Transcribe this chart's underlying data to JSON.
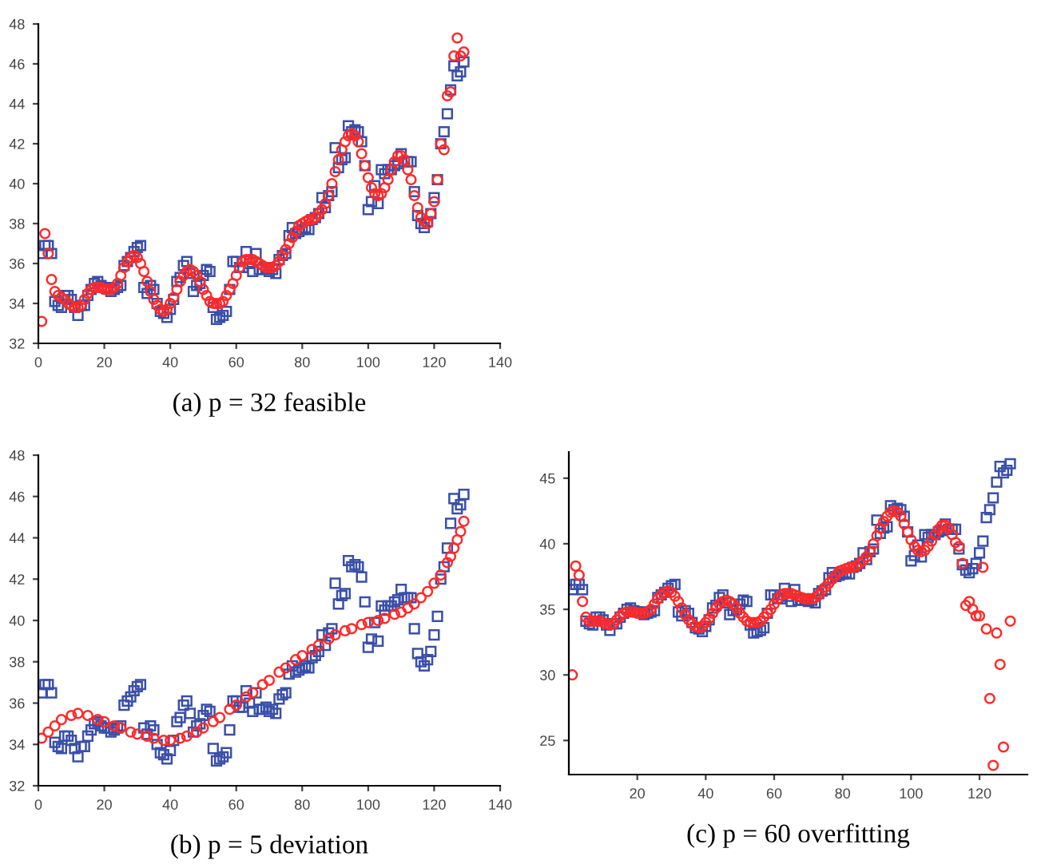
{
  "chart_data": [
    {
      "type": "scatter",
      "xlabel": "(a) p = 32 feasible",
      "xlim": [
        0,
        140
      ],
      "ylim": [
        32,
        48
      ],
      "xticks": [
        0,
        20,
        40,
        60,
        80,
        100,
        120,
        140
      ],
      "yticks": [
        32,
        34,
        36,
        38,
        40,
        42,
        44,
        46,
        48
      ],
      "x": [
        1,
        2,
        3,
        4,
        5,
        6,
        7,
        8,
        9,
        10,
        11,
        12,
        13,
        14,
        15,
        16,
        17,
        18,
        19,
        20,
        21,
        22,
        23,
        24,
        25,
        26,
        27,
        28,
        29,
        30,
        31,
        32,
        33,
        34,
        35,
        36,
        37,
        38,
        39,
        40,
        41,
        42,
        43,
        44,
        45,
        46,
        47,
        48,
        49,
        50,
        51,
        52,
        53,
        54,
        55,
        56,
        57,
        58,
        59,
        60,
        61,
        62,
        63,
        64,
        65,
        66,
        67,
        68,
        69,
        70,
        71,
        72,
        73,
        74,
        75,
        76,
        77,
        78,
        79,
        80,
        81,
        82,
        83,
        84,
        85,
        86,
        87,
        88,
        89,
        90,
        91,
        92,
        93,
        94,
        95,
        96,
        97,
        98,
        99,
        100,
        101,
        102,
        103,
        104,
        105,
        106,
        107,
        108,
        109,
        110,
        111,
        112,
        113,
        114,
        115,
        116,
        117,
        118,
        119,
        120,
        121,
        122,
        123,
        124,
        125,
        126,
        127,
        128,
        129
      ],
      "series": [
        {
          "color": "#3a4fa8",
          "marker": "square",
          "values": [
            36.5,
            36.9,
            36.9,
            36.5,
            34.1,
            33.9,
            33.8,
            34.4,
            34.4,
            34.2,
            33.8,
            33.4,
            33.9,
            33.9,
            34.4,
            34.7,
            35.0,
            35.1,
            34.9,
            34.8,
            34.8,
            34.6,
            34.7,
            34.8,
            34.9,
            35.9,
            36.1,
            36.3,
            36.6,
            36.8,
            36.9,
            34.8,
            34.5,
            34.9,
            34.7,
            34.0,
            33.6,
            33.5,
            33.3,
            33.7,
            34.2,
            35.1,
            35.3,
            35.9,
            36.1,
            35.5,
            34.6,
            34.9,
            35.0,
            35.4,
            35.7,
            35.6,
            33.8,
            33.2,
            33.3,
            33.4,
            33.6,
            34.7,
            36.1,
            36.1,
            35.8,
            35.8,
            36.6,
            36.0,
            35.6,
            36.5,
            35.7,
            35.7,
            35.8,
            35.6,
            35.7,
            35.5,
            36.2,
            36.4,
            36.5,
            37.4,
            37.8,
            37.5,
            37.6,
            37.7,
            37.8,
            37.7,
            38.2,
            38.3,
            38.5,
            39.3,
            38.8,
            39.4,
            39.6,
            41.8,
            40.8,
            41.2,
            41.3,
            42.9,
            42.6,
            42.7,
            42.6,
            42.1,
            40.9,
            38.7,
            39.1,
            39.9,
            39.0,
            40.7,
            40.5,
            40.7,
            40.7,
            40.9,
            41.0,
            41.5,
            41.1,
            41.1,
            41.1,
            39.6,
            38.4,
            38.0,
            37.8,
            38.1,
            38.5,
            39.3,
            40.2,
            42.0,
            42.6,
            43.5,
            44.7,
            45.9,
            45.4,
            45.6,
            46.1
          ]
        },
        {
          "color": "#ff2a2a",
          "marker": "circle",
          "values": [
            33.1,
            37.5,
            36.5,
            35.2,
            34.6,
            34.4,
            34.3,
            34.2,
            34.0,
            33.9,
            33.8,
            33.8,
            33.9,
            34.2,
            34.5,
            34.7,
            34.8,
            34.8,
            34.8,
            34.7,
            34.7,
            34.7,
            34.8,
            35.0,
            35.4,
            35.8,
            36.1,
            36.3,
            36.4,
            36.3,
            36.0,
            35.6,
            35.1,
            34.6,
            34.2,
            33.9,
            33.7,
            33.6,
            33.7,
            34.0,
            34.3,
            34.7,
            35.1,
            35.4,
            35.6,
            35.7,
            35.6,
            35.4,
            35.1,
            34.7,
            34.4,
            34.1,
            34.0,
            34.0,
            34.0,
            34.1,
            34.4,
            34.7,
            35.0,
            35.4,
            35.8,
            36.1,
            36.2,
            36.2,
            36.2,
            36.1,
            36.0,
            35.9,
            35.8,
            35.8,
            35.8,
            35.9,
            36.1,
            36.4,
            36.7,
            37.0,
            37.3,
            37.6,
            37.9,
            38.0,
            38.1,
            38.2,
            38.2,
            38.3,
            38.5,
            38.7,
            39.0,
            39.4,
            40.0,
            40.6,
            41.2,
            41.7,
            42.1,
            42.4,
            42.5,
            42.4,
            42.1,
            41.5,
            40.9,
            40.3,
            39.8,
            39.5,
            39.4,
            39.5,
            39.8,
            40.2,
            40.7,
            41.1,
            41.4,
            41.4,
            41.2,
            40.7,
            40.2,
            39.4,
            38.8,
            38.3,
            38.1,
            38.0,
            38.5,
            39.1,
            40.2,
            42.0,
            41.7,
            44.4,
            44.6,
            46.4,
            47.3,
            46.4,
            46.6
          ]
        }
      ]
    },
    {
      "type": "scatter",
      "xlabel": "(b) p = 5 deviation",
      "xlim": [
        0,
        140
      ],
      "ylim": [
        32,
        48
      ],
      "xticks": [
        0,
        20,
        40,
        60,
        80,
        100,
        120,
        140
      ],
      "yticks": [
        32,
        34,
        36,
        38,
        40,
        42,
        44,
        46,
        48
      ],
      "x": [
        1,
        2,
        3,
        4,
        5,
        6,
        7,
        8,
        9,
        10,
        11,
        12,
        13,
        14,
        15,
        16,
        17,
        18,
        19,
        20,
        21,
        22,
        23,
        24,
        25,
        26,
        27,
        28,
        29,
        30,
        31,
        32,
        33,
        34,
        35,
        36,
        37,
        38,
        39,
        40,
        41,
        42,
        43,
        44,
        45,
        46,
        47,
        48,
        49,
        50,
        51,
        52,
        53,
        54,
        55,
        56,
        57,
        58,
        59,
        60,
        61,
        62,
        63,
        64,
        65,
        66,
        67,
        68,
        69,
        70,
        71,
        72,
        73,
        74,
        75,
        76,
        77,
        78,
        79,
        80,
        81,
        82,
        83,
        84,
        85,
        86,
        87,
        88,
        89,
        90,
        91,
        92,
        93,
        94,
        95,
        96,
        97,
        98,
        99,
        100,
        101,
        102,
        103,
        104,
        105,
        106,
        107,
        108,
        109,
        110,
        111,
        112,
        113,
        114,
        115,
        116,
        117,
        118,
        119,
        120,
        121,
        122,
        123,
        124,
        125,
        126,
        127,
        128,
        129
      ],
      "series": [
        {
          "color": "#3a4fa8",
          "marker": "square",
          "values": [
            36.5,
            36.9,
            36.9,
            36.5,
            34.1,
            33.9,
            33.8,
            34.4,
            34.4,
            34.2,
            33.8,
            33.4,
            33.9,
            33.9,
            34.4,
            34.7,
            35.0,
            35.1,
            34.9,
            34.8,
            34.8,
            34.6,
            34.7,
            34.8,
            34.9,
            35.9,
            36.1,
            36.3,
            36.6,
            36.8,
            36.9,
            34.8,
            34.5,
            34.9,
            34.7,
            34.0,
            33.6,
            33.5,
            33.3,
            33.7,
            34.2,
            35.1,
            35.3,
            35.9,
            36.1,
            35.5,
            34.6,
            34.9,
            35.0,
            35.4,
            35.7,
            35.6,
            33.8,
            33.2,
            33.3,
            33.4,
            33.6,
            34.7,
            36.1,
            36.1,
            35.8,
            35.8,
            36.6,
            36.0,
            35.6,
            36.5,
            35.7,
            35.7,
            35.8,
            35.6,
            35.7,
            35.5,
            36.2,
            36.4,
            36.5,
            37.4,
            37.8,
            37.5,
            37.6,
            37.7,
            37.8,
            37.7,
            38.2,
            38.3,
            38.5,
            39.3,
            38.8,
            39.4,
            39.6,
            41.8,
            40.8,
            41.2,
            41.3,
            42.9,
            42.6,
            42.7,
            42.6,
            42.1,
            40.9,
            38.7,
            39.1,
            39.9,
            39.0,
            40.7,
            40.5,
            40.7,
            40.7,
            40.9,
            41.0,
            41.5,
            41.1,
            41.1,
            41.1,
            39.6,
            38.4,
            38.0,
            37.8,
            38.1,
            38.5,
            39.3,
            40.2,
            42.0,
            42.6,
            43.5,
            44.7,
            45.9,
            45.4,
            45.6,
            46.1
          ]
        },
        {
          "color": "#ff2a2a",
          "marker": "circle",
          "x": [
            1,
            3,
            5,
            7,
            10,
            12,
            15,
            18,
            20,
            23,
            25,
            28,
            30,
            33,
            35,
            38,
            40,
            43,
            45,
            48,
            50,
            53,
            55,
            58,
            60,
            63,
            65,
            68,
            70,
            73,
            75,
            78,
            80,
            83,
            85,
            88,
            90,
            93,
            95,
            98,
            100,
            103,
            105,
            108,
            110,
            112,
            114,
            116,
            118,
            120,
            122,
            124,
            125,
            126,
            127,
            128,
            129
          ],
          "values": [
            34.3,
            34.6,
            34.9,
            35.2,
            35.4,
            35.5,
            35.4,
            35.2,
            35.1,
            34.9,
            34.8,
            34.6,
            34.5,
            34.4,
            34.3,
            34.2,
            34.2,
            34.3,
            34.4,
            34.6,
            34.8,
            35.1,
            35.3,
            35.7,
            35.9,
            36.3,
            36.5,
            36.9,
            37.1,
            37.5,
            37.7,
            38.1,
            38.3,
            38.6,
            38.8,
            39.1,
            39.3,
            39.5,
            39.6,
            39.8,
            39.9,
            40.0,
            40.1,
            40.3,
            40.4,
            40.6,
            40.8,
            41.1,
            41.4,
            41.8,
            42.2,
            42.8,
            43.1,
            43.5,
            43.9,
            44.3,
            44.8
          ]
        }
      ]
    },
    {
      "type": "scatter",
      "xlabel": "(c) p = 60 overfitting",
      "xlim": [
        0,
        134
      ],
      "ylim": [
        22.4,
        47
      ],
      "xticks": [
        20,
        40,
        60,
        80,
        100,
        120
      ],
      "yticks": [
        25,
        30,
        35,
        40,
        45
      ],
      "x": [
        1,
        2,
        3,
        4,
        5,
        6,
        7,
        8,
        9,
        10,
        11,
        12,
        13,
        14,
        15,
        16,
        17,
        18,
        19,
        20,
        21,
        22,
        23,
        24,
        25,
        26,
        27,
        28,
        29,
        30,
        31,
        32,
        33,
        34,
        35,
        36,
        37,
        38,
        39,
        40,
        41,
        42,
        43,
        44,
        45,
        46,
        47,
        48,
        49,
        50,
        51,
        52,
        53,
        54,
        55,
        56,
        57,
        58,
        59,
        60,
        61,
        62,
        63,
        64,
        65,
        66,
        67,
        68,
        69,
        70,
        71,
        72,
        73,
        74,
        75,
        76,
        77,
        78,
        79,
        80,
        81,
        82,
        83,
        84,
        85,
        86,
        87,
        88,
        89,
        90,
        91,
        92,
        93,
        94,
        95,
        96,
        97,
        98,
        99,
        100,
        101,
        102,
        103,
        104,
        105,
        106,
        107,
        108,
        109,
        110,
        111,
        112,
        113,
        114,
        115,
        116,
        117,
        118,
        119,
        120,
        121,
        122,
        123,
        124,
        125,
        126,
        127,
        128,
        129
      ],
      "series": [
        {
          "color": "#3a4fa8",
          "marker": "square",
          "values": [
            36.5,
            36.9,
            36.9,
            36.5,
            34.1,
            33.9,
            33.8,
            34.4,
            34.4,
            34.2,
            33.8,
            33.4,
            33.9,
            33.9,
            34.4,
            34.7,
            35.0,
            35.1,
            34.9,
            34.8,
            34.8,
            34.6,
            34.7,
            34.8,
            34.9,
            35.9,
            36.1,
            36.3,
            36.6,
            36.8,
            36.9,
            34.8,
            34.5,
            34.9,
            34.7,
            34.0,
            33.6,
            33.5,
            33.3,
            33.7,
            34.2,
            35.1,
            35.3,
            35.9,
            36.1,
            35.5,
            34.6,
            34.9,
            35.0,
            35.4,
            35.7,
            35.6,
            33.8,
            33.2,
            33.3,
            33.4,
            33.6,
            34.7,
            36.1,
            36.1,
            35.8,
            35.8,
            36.6,
            36.0,
            35.6,
            36.5,
            35.7,
            35.7,
            35.8,
            35.6,
            35.7,
            35.5,
            36.2,
            36.4,
            36.5,
            37.4,
            37.8,
            37.5,
            37.6,
            37.7,
            37.8,
            37.7,
            38.2,
            38.3,
            38.5,
            39.3,
            38.8,
            39.4,
            39.6,
            41.8,
            40.8,
            41.2,
            41.3,
            42.9,
            42.6,
            42.7,
            42.6,
            42.1,
            40.9,
            38.7,
            39.1,
            39.9,
            39.0,
            40.7,
            40.5,
            40.7,
            40.7,
            40.9,
            41.0,
            41.5,
            41.1,
            41.1,
            41.1,
            39.6,
            38.4,
            38.0,
            37.8,
            38.1,
            38.5,
            39.3,
            40.2,
            42.0,
            42.6,
            43.5,
            44.7,
            45.9,
            45.4,
            45.6,
            46.1
          ]
        },
        {
          "color": "#ff2a2a",
          "marker": "circle",
          "values": [
            30.0,
            38.3,
            37.6,
            35.6,
            34.4,
            34.1,
            34.1,
            34.1,
            34.1,
            34.0,
            33.9,
            33.8,
            33.9,
            34.2,
            34.5,
            34.7,
            34.8,
            34.8,
            34.8,
            34.7,
            34.7,
            34.7,
            34.8,
            35.0,
            35.4,
            35.8,
            36.1,
            36.3,
            36.4,
            36.3,
            36.0,
            35.6,
            35.1,
            34.6,
            34.2,
            33.9,
            33.7,
            33.6,
            33.7,
            34.0,
            34.3,
            34.7,
            35.1,
            35.4,
            35.6,
            35.7,
            35.6,
            35.4,
            35.1,
            34.7,
            34.4,
            34.1,
            34.0,
            34.0,
            34.0,
            34.1,
            34.4,
            34.7,
            35.0,
            35.4,
            35.8,
            36.1,
            36.2,
            36.2,
            36.2,
            36.1,
            36.0,
            35.9,
            35.8,
            35.8,
            35.8,
            35.9,
            36.1,
            36.4,
            36.7,
            37.0,
            37.3,
            37.6,
            37.9,
            38.0,
            38.1,
            38.2,
            38.2,
            38.3,
            38.5,
            38.7,
            39.0,
            39.4,
            40.0,
            40.6,
            41.2,
            41.7,
            42.1,
            42.4,
            42.5,
            42.4,
            42.1,
            41.5,
            40.9,
            40.3,
            39.8,
            39.5,
            39.4,
            39.5,
            39.8,
            40.2,
            40.7,
            41.1,
            41.4,
            41.4,
            41.2,
            40.7,
            40.1,
            39.8,
            38.5,
            35.3,
            35.6,
            35.0,
            34.5,
            34.5,
            38.2,
            33.5,
            28.2,
            23.1,
            33.2,
            30.8,
            24.5,
            null,
            34.1
          ]
        }
      ]
    }
  ]
}
